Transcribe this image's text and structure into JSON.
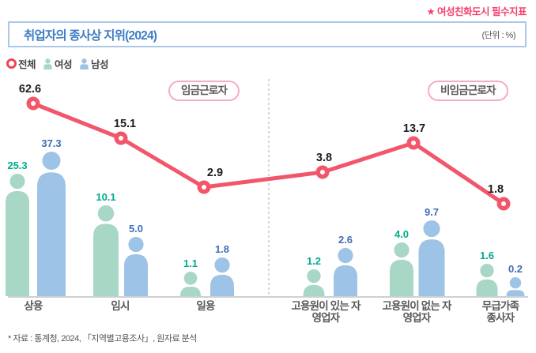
{
  "note_top": "★ 여성친화도시 필수지표",
  "header": {
    "title": "취업자의 종사상 지위(2024)",
    "unit": "(단위 : %)"
  },
  "legend": [
    {
      "label": "전체",
      "icon": "line-marker-icon",
      "color": "#ef4559"
    },
    {
      "label": "여성",
      "icon": "female-person-icon",
      "color": "#a9d7c6"
    },
    {
      "label": "남성",
      "icon": "male-person-icon",
      "color": "#9dc3e6"
    }
  ],
  "chart_data": {
    "type": "bar",
    "subtype": "pictogram-with-line",
    "title": "취업자의 종사상 지위(2024)",
    "unit": "%",
    "categories": [
      "상용",
      "임시",
      "일용",
      "고용원이 있는 자영업자",
      "고용원이 없는 자영업자",
      "무급가족 종사자"
    ],
    "categories_display": [
      [
        "상용"
      ],
      [
        "임시"
      ],
      [
        "일용"
      ],
      [
        "고용원이 있는 자",
        "영업자"
      ],
      [
        "고용원이 없는 자",
        "영업자"
      ],
      [
        "무급가족",
        "종사자"
      ]
    ],
    "series": [
      {
        "name": "전체",
        "type": "line",
        "color": "#f2566a",
        "label_color": "#1d1d1d",
        "values": [
          62.6,
          15.1,
          2.9,
          3.8,
          13.7,
          1.8
        ]
      },
      {
        "name": "여성",
        "type": "pictogram",
        "color": "#a9d7c6",
        "label_color": "#00ab8e",
        "values": [
          25.3,
          10.1,
          1.1,
          1.2,
          4.0,
          1.6
        ]
      },
      {
        "name": "남성",
        "type": "pictogram",
        "color": "#9dc3e6",
        "label_color": "#3f6db5",
        "values": [
          37.3,
          5.0,
          1.8,
          2.6,
          9.7,
          0.2
        ]
      }
    ],
    "sections": [
      {
        "label": "임금근로자",
        "category_indexes": [
          0,
          1,
          2
        ]
      },
      {
        "label": "비임금근로자",
        "category_indexes": [
          3,
          4,
          5
        ]
      }
    ],
    "legend_position": "top-left",
    "grid": false
  },
  "footer": "* 자료 : 통계청, 2024, 「지역별고용조사」, 원자료 분석"
}
